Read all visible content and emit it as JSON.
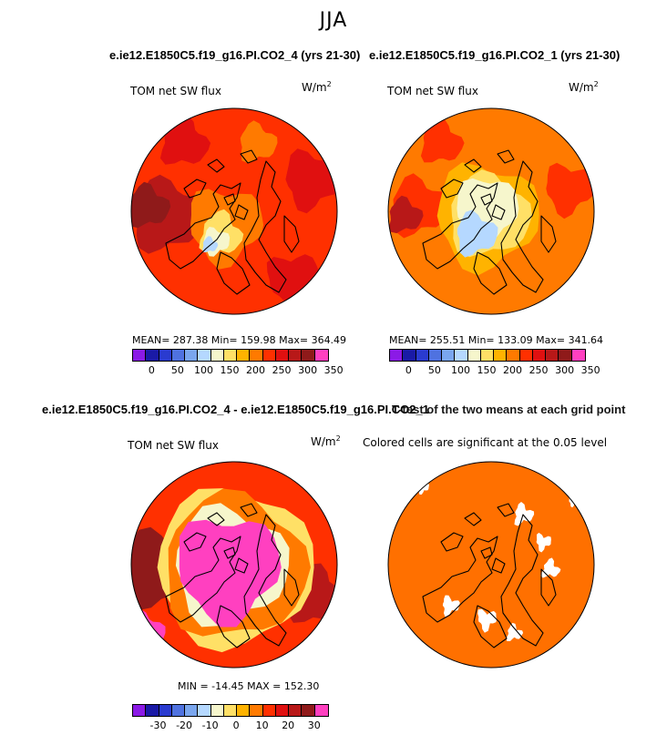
{
  "chart_data": [
    {
      "type": "heatmap",
      "projection": "north-polar-stereographic",
      "title": "e.ie12.E1850C5.f19_g16.PI.CO2_4 (yrs 21-30)",
      "variable": "TOM net SW flux",
      "units": "W/m",
      "units_sup": "2",
      "stats": "MEAN= 287.38   Min= 159.98   Max= 364.49",
      "colorbar": {
        "ticks": [
          "0",
          "50",
          "100",
          "150",
          "200",
          "250",
          "300",
          "350"
        ],
        "colors": [
          "#8b1ae6",
          "#1a1aa6",
          "#2a3bd0",
          "#4f72e0",
          "#7aa6ee",
          "#b5d8ff",
          "#f6f6cc",
          "#ffe066",
          "#ffb300",
          "#ff7a00",
          "#ff3000",
          "#e01010",
          "#b81818",
          "#8f1a1a",
          "#ff40c0"
        ]
      }
    },
    {
      "type": "heatmap",
      "projection": "north-polar-stereographic",
      "title": "e.ie12.E1850C5.f19_g16.PI.CO2_1 (yrs 21-30)",
      "variable": "TOM net SW flux",
      "units": "W/m",
      "units_sup": "2",
      "stats": "MEAN= 255.51   Min= 133.09   Max= 341.64",
      "colorbar": {
        "ticks": [
          "0",
          "50",
          "100",
          "150",
          "200",
          "250",
          "300",
          "350"
        ],
        "colors": [
          "#8b1ae6",
          "#1a1aa6",
          "#2a3bd0",
          "#4f72e0",
          "#7aa6ee",
          "#b5d8ff",
          "#f6f6cc",
          "#ffe066",
          "#ffb300",
          "#ff7a00",
          "#ff3000",
          "#e01010",
          "#b81818",
          "#8f1a1a",
          "#ff40c0"
        ]
      }
    },
    {
      "type": "heatmap",
      "projection": "north-polar-stereographic",
      "title": "e.ie12.E1850C5.f19_g16.PI.CO2_4 - e.ie12.E1850C5.f19_g16.PI.CO2_1",
      "variable": "TOM net SW flux",
      "units": "W/m",
      "units_sup": "2",
      "stats": "MIN = -14.45  MAX = 152.30",
      "colorbar": {
        "ticks": [
          "-30",
          "-20",
          "-10",
          "0",
          "10",
          "20",
          "30"
        ],
        "colors": [
          "#8b1ae6",
          "#1a1aa6",
          "#2a3bd0",
          "#4f72e0",
          "#7aa6ee",
          "#b5d8ff",
          "#f6f6cc",
          "#ffe066",
          "#ffb300",
          "#ff7a00",
          "#ff3000",
          "#e01010",
          "#b81818",
          "#8f1a1a",
          "#ff40c0"
        ]
      }
    },
    {
      "type": "heatmap",
      "projection": "north-polar-stereographic",
      "title": "T-test of the two means at each grid point",
      "note": "Colored cells are significant at the 0.05 level",
      "significant_color": "#ff7000"
    }
  ],
  "season": "JJA"
}
